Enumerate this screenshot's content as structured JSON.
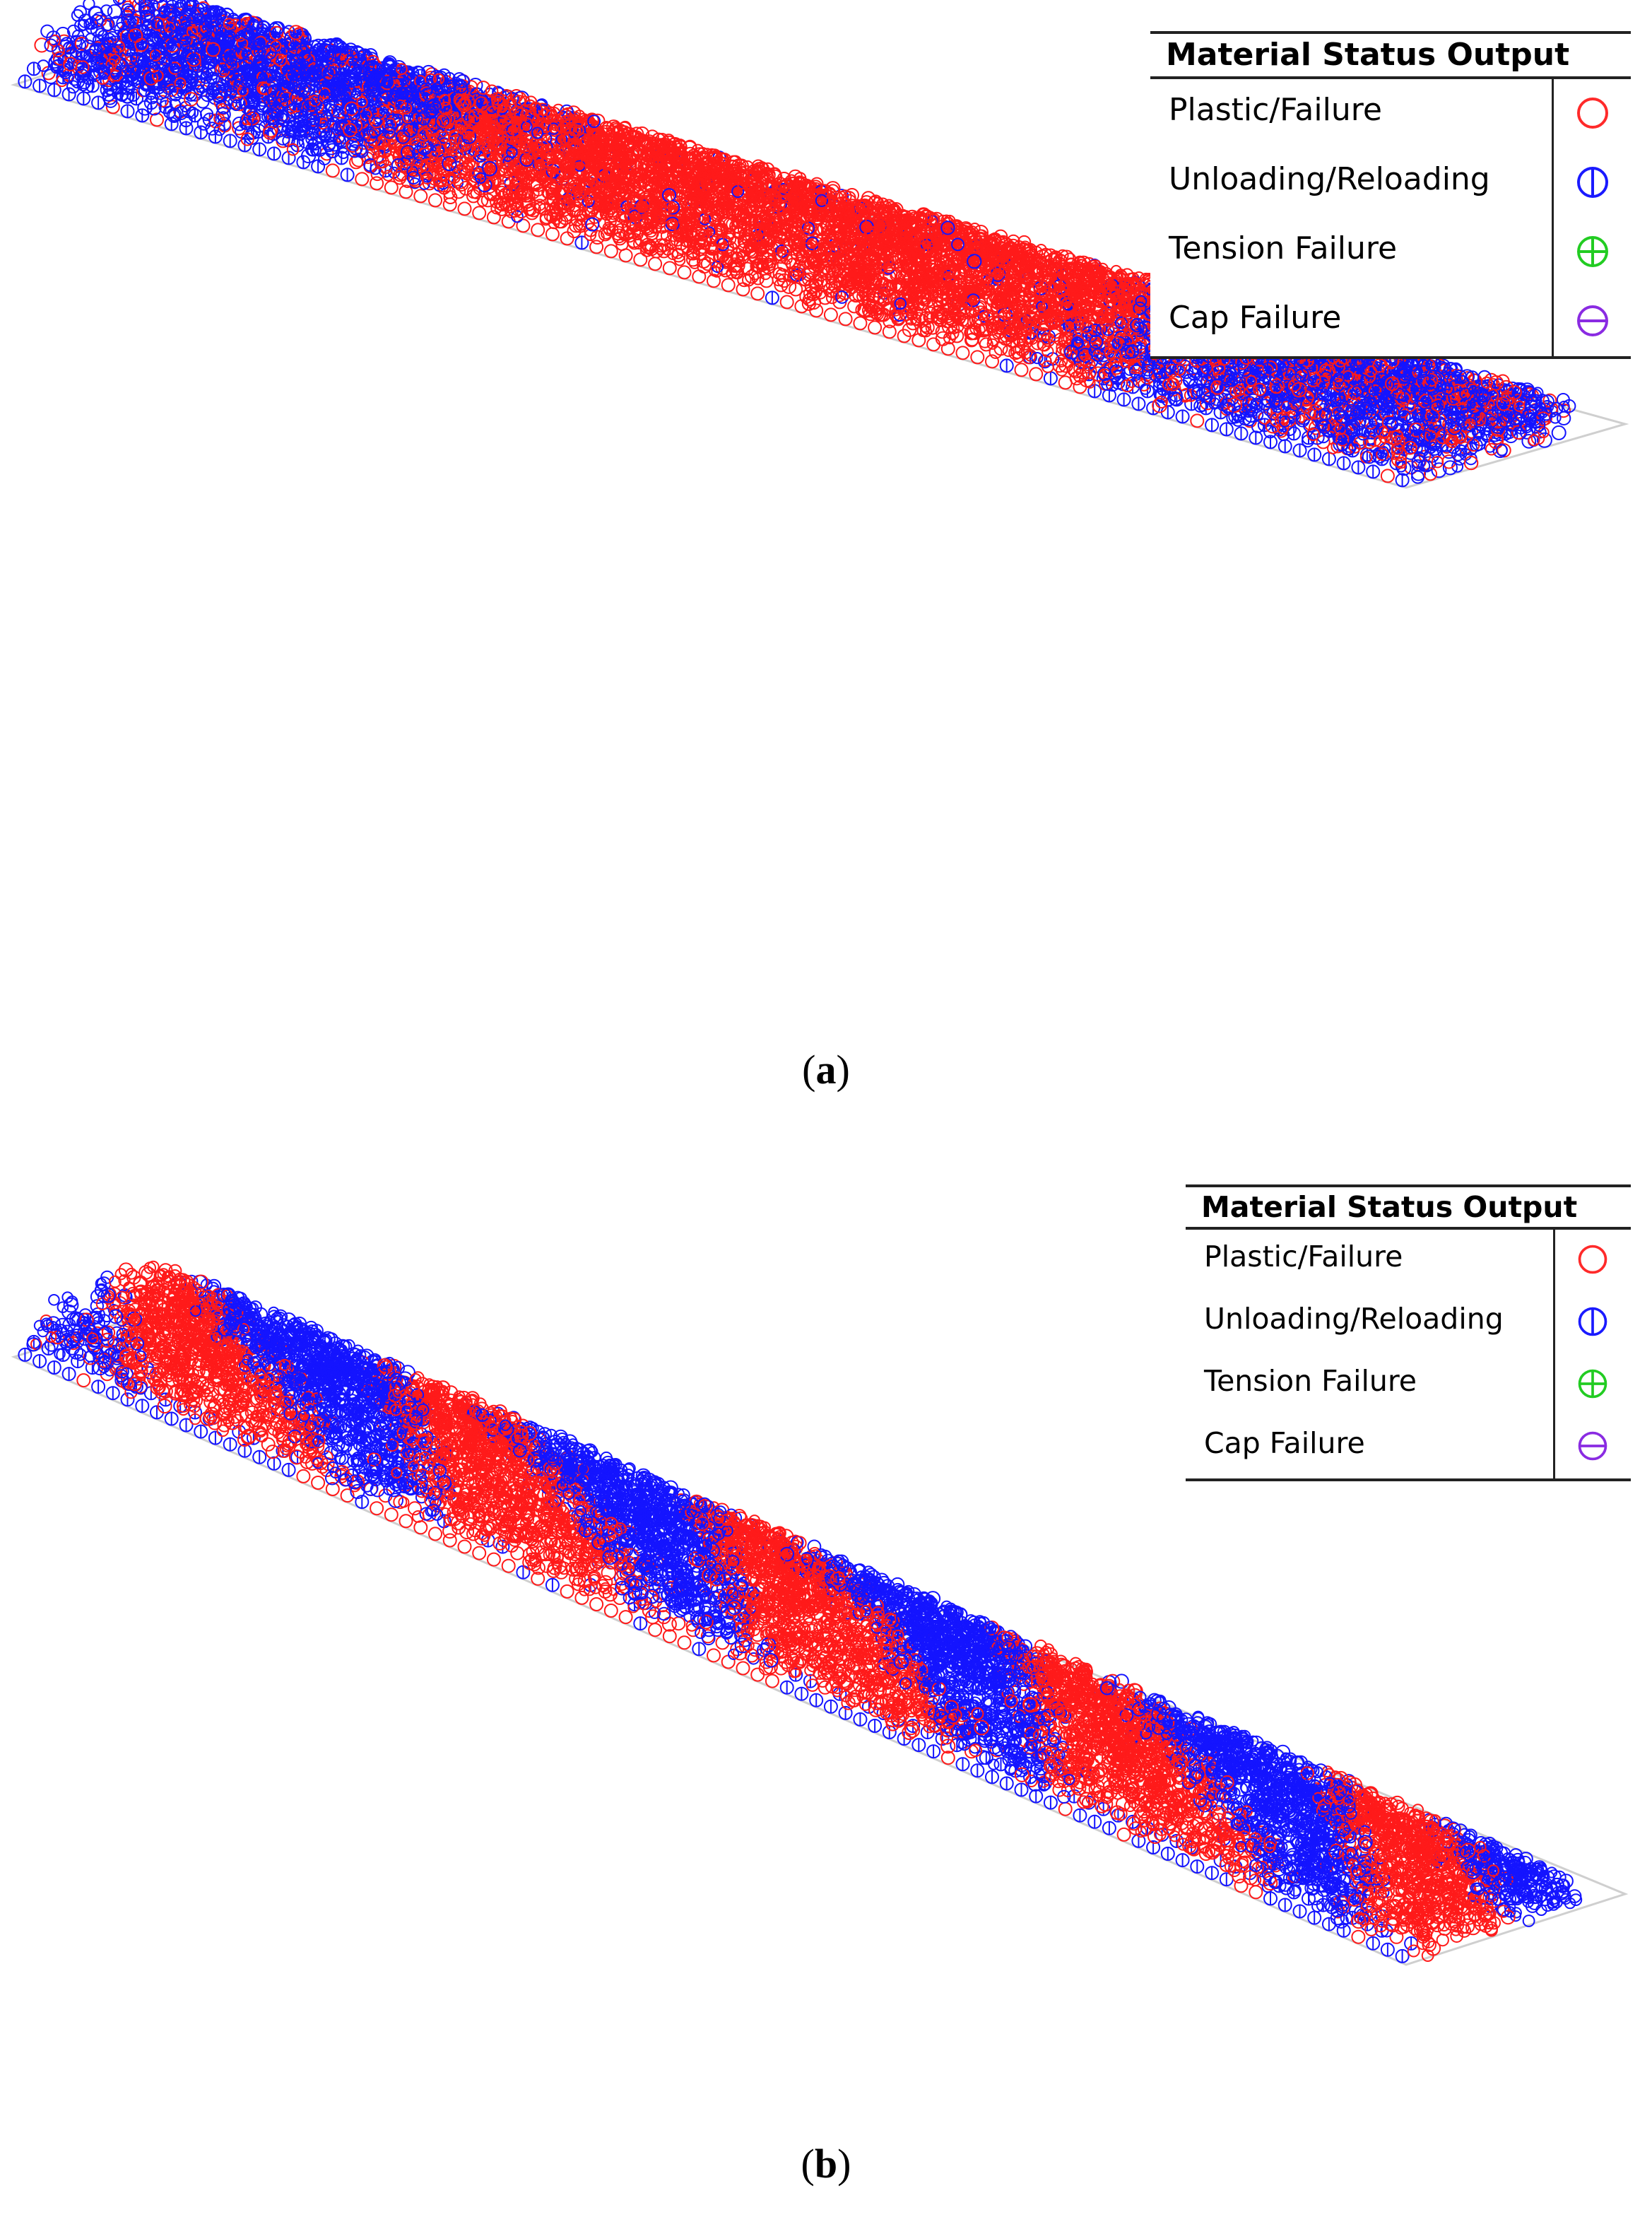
{
  "panels": [
    {
      "id": "a",
      "caption_open": "(",
      "caption_letter": "a",
      "caption_close": ")",
      "legend": {
        "title": "Material Status Output",
        "items": [
          {
            "label": "Plastic/Failure",
            "symbol": "circle",
            "color": "#ff2a2a"
          },
          {
            "label": "Unloading/Reloading",
            "symbol": "circle-vertical-bar",
            "color": "#1a1aff"
          },
          {
            "label": "Tension Failure",
            "symbol": "circle-plus",
            "color": "#22cc22"
          },
          {
            "label": "Cap Failure",
            "symbol": "circle-horizontal-bar",
            "color": "#8a2be2"
          }
        ]
      }
    },
    {
      "id": "b",
      "caption_open": "(",
      "caption_letter": "b",
      "caption_close": ")",
      "legend": {
        "title": "Material Status Output",
        "items": [
          {
            "label": "Plastic/Failure",
            "symbol": "circle",
            "color": "#ff2a2a"
          },
          {
            "label": "Unloading/Reloading",
            "symbol": "circle-vertical-bar",
            "color": "#1a1aff"
          },
          {
            "label": "Tension Failure",
            "symbol": "circle-plus",
            "color": "#22cc22"
          },
          {
            "label": "Cap Failure",
            "symbol": "circle-horizontal-bar",
            "color": "#8a2be2"
          }
        ]
      }
    }
  ]
}
